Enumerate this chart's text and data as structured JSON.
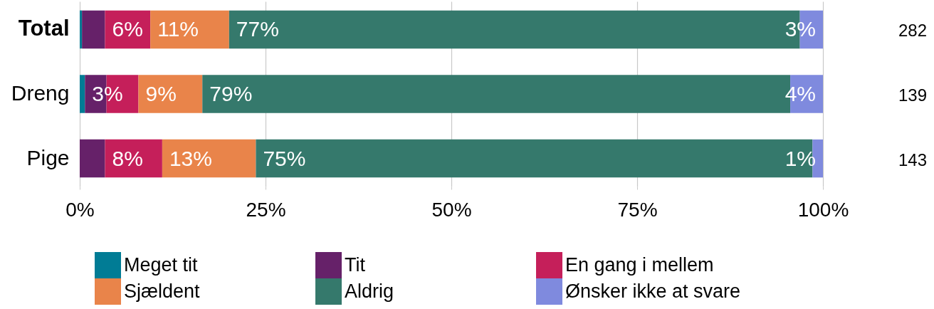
{
  "chart_data": {
    "type": "bar",
    "orientation": "horizontal",
    "stacked": true,
    "categories": [
      "Total",
      "Dreng",
      "Pige"
    ],
    "xlim": [
      0,
      100
    ],
    "xticks": [
      {
        "value": 0,
        "label": "0%"
      },
      {
        "value": 25,
        "label": "25%"
      },
      {
        "value": 50,
        "label": "50%"
      },
      {
        "value": 75,
        "label": "75%"
      },
      {
        "value": 100,
        "label": "100%"
      }
    ],
    "grid": "x",
    "legend": "bottom",
    "series": [
      {
        "name": "Meget tit",
        "color": "#017c95",
        "values": [
          0.3,
          0.7,
          null
        ]
      },
      {
        "name": "Tit",
        "color": "#662169",
        "values": [
          3.1,
          2.9,
          3.4
        ],
        "value_labels": [
          null,
          "3%",
          null
        ]
      },
      {
        "name": "En gang i mellem",
        "color": "#c51f5a",
        "values": [
          6.1,
          4.3,
          7.7
        ],
        "value_labels": [
          "6%",
          null,
          "8%"
        ]
      },
      {
        "name": "Sjældent",
        "color": "#e9844a",
        "values": [
          10.6,
          8.6,
          12.6
        ],
        "value_labels": [
          "11%",
          "9%",
          "13%"
        ]
      },
      {
        "name": "Aldrig",
        "color": "#35796c",
        "values": [
          76.8,
          79.1,
          74.9
        ],
        "value_labels": [
          "77%",
          "79%",
          "75%"
        ]
      },
      {
        "name": "Ønsker ikke at svare",
        "color": "#7f8ade",
        "values": [
          3.1,
          4.4,
          1.4
        ],
        "value_labels": [
          "3%",
          "4%",
          "1%"
        ]
      }
    ],
    "annotations": [
      "282",
      "139",
      "143"
    ]
  }
}
